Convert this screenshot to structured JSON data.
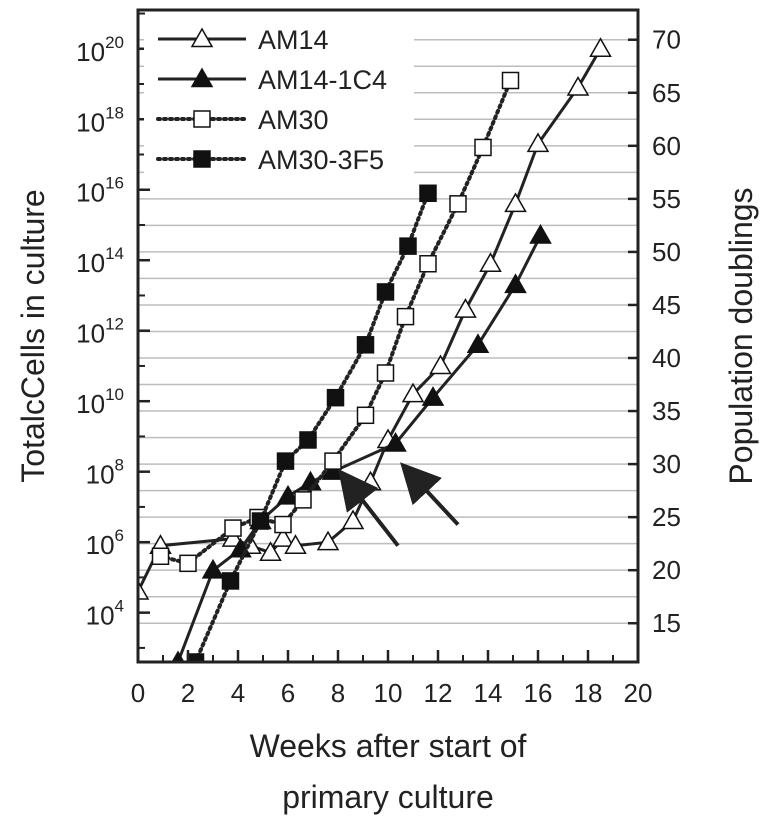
{
  "chart_data": {
    "type": "line",
    "x_axis": {
      "label_line1": "Weeks after start of",
      "label_line2": "primary culture",
      "range": [
        0,
        20
      ],
      "ticks": [
        "0",
        "2",
        "4",
        "6",
        "8",
        "10",
        "12",
        "14",
        "16",
        "18",
        "20"
      ]
    },
    "y_left": {
      "label": "TotalcCells in culture",
      "scale": "log10",
      "range_exp": [
        2.6,
        21.1
      ],
      "tick_base": "10",
      "tick_exponents": [
        "4",
        "6",
        "8",
        "10",
        "12",
        "14",
        "16",
        "18",
        "20"
      ]
    },
    "y_right": {
      "label": "Population doublings",
      "ticks": [
        "15",
        "20",
        "25",
        "30",
        "35",
        "40",
        "45",
        "50",
        "55",
        "60",
        "65",
        "70"
      ]
    },
    "grid": "horizontal",
    "legend_position": "top-left",
    "series": [
      {
        "name": "AM14",
        "marker": "triangle-open",
        "line": "solid",
        "points": [
          [
            0,
            4.6
          ],
          [
            0.9,
            5.9
          ],
          [
            3.8,
            6.1
          ],
          [
            4.5,
            5.9
          ],
          [
            5.3,
            5.7
          ],
          [
            5.8,
            6.1
          ],
          [
            6.3,
            5.9
          ],
          [
            7.6,
            6.0
          ],
          [
            8.6,
            6.6
          ],
          [
            9.3,
            7.7
          ],
          [
            10.0,
            8.9
          ],
          [
            11.0,
            10.2
          ],
          [
            12.1,
            11.0
          ],
          [
            13.1,
            12.6
          ],
          [
            14.1,
            13.9
          ],
          [
            15.1,
            15.6
          ],
          [
            16.0,
            17.3
          ],
          [
            17.6,
            18.9
          ],
          [
            18.5,
            20.0
          ]
        ]
      },
      {
        "name": "AM14-1C4",
        "marker": "triangle-filled",
        "line": "solid",
        "points": [
          [
            1.6,
            2.6
          ],
          [
            3.0,
            5.2
          ],
          [
            4.1,
            5.8
          ],
          [
            4.9,
            6.6
          ],
          [
            6.0,
            7.3
          ],
          [
            6.9,
            7.7
          ],
          [
            7.8,
            8.0
          ],
          [
            10.3,
            8.8
          ],
          [
            11.8,
            10.1
          ],
          [
            13.6,
            11.6
          ],
          [
            15.1,
            13.3
          ],
          [
            16.1,
            14.7
          ]
        ]
      },
      {
        "name": "AM30",
        "marker": "square-open",
        "line": "dotted",
        "points": [
          [
            0.9,
            5.6
          ],
          [
            2.0,
            5.4
          ],
          [
            3.8,
            6.4
          ],
          [
            4.8,
            6.7
          ],
          [
            5.8,
            6.5
          ],
          [
            6.6,
            7.2
          ],
          [
            7.8,
            8.3
          ],
          [
            9.1,
            9.6
          ],
          [
            9.9,
            10.8
          ],
          [
            10.7,
            12.4
          ],
          [
            11.6,
            13.9
          ],
          [
            12.8,
            15.6
          ],
          [
            13.8,
            17.2
          ],
          [
            14.9,
            19.1
          ]
        ]
      },
      {
        "name": "AM30-3F5",
        "marker": "square-filled",
        "line": "dotted",
        "points": [
          [
            2.3,
            2.6
          ],
          [
            3.7,
            4.9
          ],
          [
            4.9,
            6.6
          ],
          [
            5.9,
            8.3
          ],
          [
            6.8,
            8.9
          ],
          [
            7.9,
            10.1
          ],
          [
            9.1,
            11.6
          ],
          [
            9.9,
            13.1
          ],
          [
            10.8,
            14.4
          ],
          [
            11.6,
            15.9
          ]
        ]
      }
    ],
    "annotations": [
      {
        "type": "arrow",
        "from": [
          10.4,
          5.9
        ],
        "to": [
          8.2,
          7.9
        ]
      },
      {
        "type": "arrow",
        "from": [
          12.8,
          6.5
        ],
        "to": [
          10.7,
          8.1
        ]
      }
    ]
  }
}
